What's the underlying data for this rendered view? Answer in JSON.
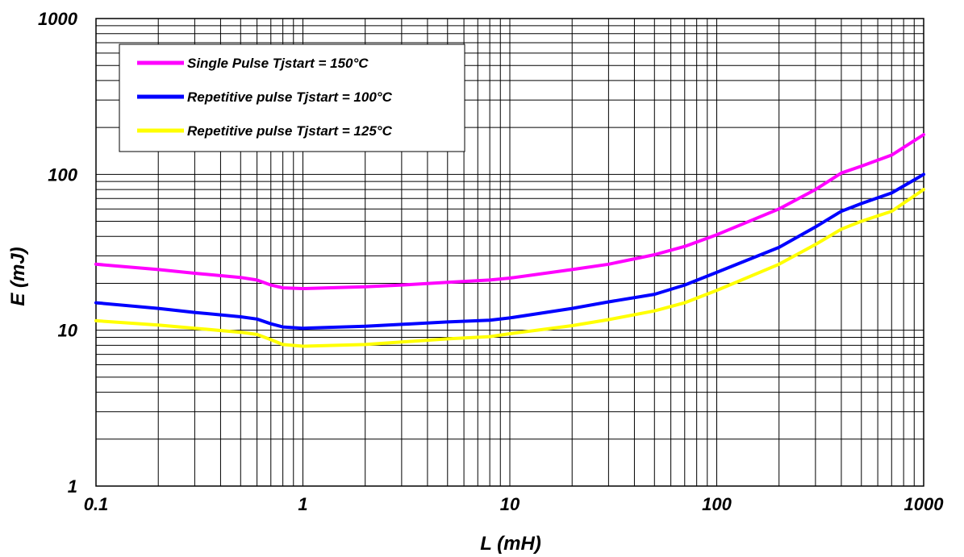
{
  "chart_data": {
    "type": "line",
    "xlabel": "L (mH)",
    "ylabel": "E (mJ)",
    "x_scale": "log",
    "y_scale": "log",
    "xlim": [
      0.1,
      1000
    ],
    "ylim": [
      1,
      1000
    ],
    "grid": true,
    "legend_position": "top-left",
    "x_ticks": [
      "0.1",
      "1",
      "10",
      "100",
      "1000"
    ],
    "y_ticks": [
      "1",
      "10",
      "100",
      "1000"
    ],
    "series": [
      {
        "name": "Single Pulse Tjstart = 150°C",
        "color": "#ff00ff",
        "points": [
          [
            0.1,
            26.5
          ],
          [
            0.2,
            24.5
          ],
          [
            0.3,
            23.2
          ],
          [
            0.5,
            21.8
          ],
          [
            0.6,
            21.0
          ],
          [
            0.7,
            19.5
          ],
          [
            0.8,
            18.7
          ],
          [
            1,
            18.5
          ],
          [
            2,
            19.0
          ],
          [
            3,
            19.5
          ],
          [
            5,
            20.3
          ],
          [
            8,
            21.0
          ],
          [
            10,
            21.6
          ],
          [
            20,
            24.5
          ],
          [
            30,
            26.5
          ],
          [
            50,
            30.5
          ],
          [
            70,
            34.5
          ],
          [
            100,
            41
          ],
          [
            200,
            60
          ],
          [
            300,
            80
          ],
          [
            400,
            102
          ],
          [
            500,
            113
          ],
          [
            700,
            133
          ],
          [
            1000,
            180
          ]
        ]
      },
      {
        "name": "Repetitive pulse Tjstart = 100°C",
        "color": "#0000ff",
        "points": [
          [
            0.1,
            15.0
          ],
          [
            0.2,
            13.8
          ],
          [
            0.3,
            13.0
          ],
          [
            0.5,
            12.2
          ],
          [
            0.6,
            11.8
          ],
          [
            0.7,
            11.0
          ],
          [
            0.8,
            10.5
          ],
          [
            1,
            10.3
          ],
          [
            2,
            10.6
          ],
          [
            3,
            10.9
          ],
          [
            5,
            11.3
          ],
          [
            8,
            11.6
          ],
          [
            10,
            12.0
          ],
          [
            20,
            13.8
          ],
          [
            30,
            15.2
          ],
          [
            50,
            17.0
          ],
          [
            70,
            19.5
          ],
          [
            100,
            23.5
          ],
          [
            200,
            34
          ],
          [
            300,
            46
          ],
          [
            400,
            58
          ],
          [
            500,
            65
          ],
          [
            700,
            76
          ],
          [
            1000,
            100
          ]
        ]
      },
      {
        "name": "Repetitive pulse Tjstart = 125°C",
        "color": "#ffff00",
        "points": [
          [
            0.1,
            11.5
          ],
          [
            0.2,
            10.8
          ],
          [
            0.3,
            10.3
          ],
          [
            0.5,
            9.7
          ],
          [
            0.6,
            9.4
          ],
          [
            0.7,
            8.7
          ],
          [
            0.8,
            8.1
          ],
          [
            1,
            7.9
          ],
          [
            2,
            8.1
          ],
          [
            3,
            8.4
          ],
          [
            5,
            8.8
          ],
          [
            8,
            9.1
          ],
          [
            10,
            9.5
          ],
          [
            20,
            10.7
          ],
          [
            30,
            11.7
          ],
          [
            50,
            13.3
          ],
          [
            70,
            15.0
          ],
          [
            100,
            18.0
          ],
          [
            200,
            26.5
          ],
          [
            300,
            35.5
          ],
          [
            400,
            44.5
          ],
          [
            500,
            50
          ],
          [
            700,
            58
          ],
          [
            1000,
            80
          ]
        ]
      }
    ]
  }
}
